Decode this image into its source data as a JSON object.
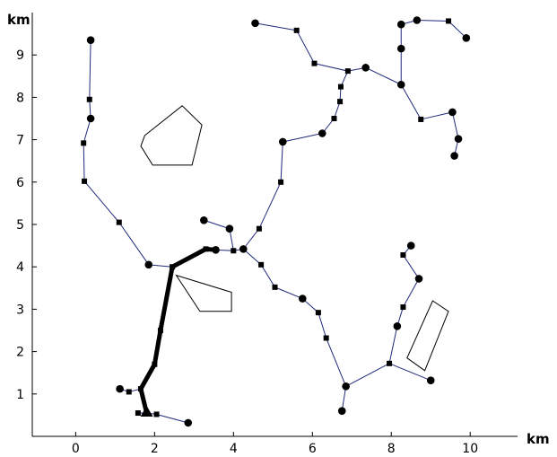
{
  "chart_data": {
    "type": "scatter",
    "xlabel": "km",
    "ylabel": "km",
    "xlim": [
      -1.1,
      11.2
    ],
    "ylim": [
      0,
      10
    ],
    "x_ticks": [
      "0",
      "2",
      "4",
      "6",
      "8",
      "10"
    ],
    "y_ticks": [
      "1",
      "2",
      "3",
      "4",
      "5",
      "6",
      "7",
      "8",
      "9"
    ],
    "grid": false,
    "line_color": "#1f2a7a",
    "main_trunk_color": "#000000",
    "nodes": [
      {
        "id": "n0",
        "x": 1.8,
        "y": 0.55,
        "marker": "triangle"
      },
      {
        "id": "n1",
        "x": 1.58,
        "y": 0.55,
        "marker": "square"
      },
      {
        "id": "n2",
        "x": 2.05,
        "y": 0.52,
        "marker": "square"
      },
      {
        "id": "n3",
        "x": 2.85,
        "y": 0.32,
        "marker": "circle"
      },
      {
        "id": "n4",
        "x": 1.65,
        "y": 1.12,
        "marker": "square"
      },
      {
        "id": "n5",
        "x": 1.35,
        "y": 1.05,
        "marker": "square"
      },
      {
        "id": "n6",
        "x": 1.12,
        "y": 1.12,
        "marker": "circle"
      },
      {
        "id": "n7",
        "x": 2.0,
        "y": 1.7,
        "marker": "square"
      },
      {
        "id": "n8",
        "x": 2.15,
        "y": 2.5,
        "marker": "square"
      },
      {
        "id": "n9",
        "x": 2.45,
        "y": 4.0,
        "marker": "square"
      },
      {
        "id": "n10",
        "x": 1.85,
        "y": 4.05,
        "marker": "circle"
      },
      {
        "id": "n11",
        "x": 1.1,
        "y": 5.05,
        "marker": "square"
      },
      {
        "id": "n12",
        "x": 0.22,
        "y": 6.02,
        "marker": "square"
      },
      {
        "id": "n13",
        "x": 0.2,
        "y": 6.92,
        "marker": "square"
      },
      {
        "id": "n14",
        "x": 0.38,
        "y": 7.5,
        "marker": "circle"
      },
      {
        "id": "n15",
        "x": 0.35,
        "y": 7.95,
        "marker": "square"
      },
      {
        "id": "n16",
        "x": 0.38,
        "y": 9.35,
        "marker": "circle"
      },
      {
        "id": "n17",
        "x": 3.3,
        "y": 4.42,
        "marker": "square"
      },
      {
        "id": "n18",
        "x": 3.55,
        "y": 4.4,
        "marker": "circle"
      },
      {
        "id": "n19",
        "x": 3.25,
        "y": 5.1,
        "marker": "circle"
      },
      {
        "id": "n20",
        "x": 3.9,
        "y": 4.9,
        "marker": "circle"
      },
      {
        "id": "n21",
        "x": 4.0,
        "y": 4.38,
        "marker": "square"
      },
      {
        "id": "n22",
        "x": 4.25,
        "y": 4.42,
        "marker": "circle"
      },
      {
        "id": "n23",
        "x": 4.65,
        "y": 4.9,
        "marker": "square"
      },
      {
        "id": "n24",
        "x": 5.2,
        "y": 6.0,
        "marker": "square"
      },
      {
        "id": "n25",
        "x": 5.25,
        "y": 6.95,
        "marker": "circle"
      },
      {
        "id": "n26",
        "x": 6.25,
        "y": 7.15,
        "marker": "circle"
      },
      {
        "id": "n27",
        "x": 6.55,
        "y": 7.5,
        "marker": "square"
      },
      {
        "id": "n28",
        "x": 6.7,
        "y": 7.9,
        "marker": "square"
      },
      {
        "id": "n29",
        "x": 6.72,
        "y": 8.25,
        "marker": "square"
      },
      {
        "id": "n30",
        "x": 6.9,
        "y": 8.62,
        "marker": "square"
      },
      {
        "id": "n31",
        "x": 6.05,
        "y": 8.8,
        "marker": "square"
      },
      {
        "id": "n32",
        "x": 5.6,
        "y": 9.58,
        "marker": "square"
      },
      {
        "id": "n33",
        "x": 4.55,
        "y": 9.75,
        "marker": "circle"
      },
      {
        "id": "n34",
        "x": 7.35,
        "y": 8.7,
        "marker": "circle"
      },
      {
        "id": "n35",
        "x": 8.25,
        "y": 8.3,
        "marker": "circle"
      },
      {
        "id": "n36",
        "x": 8.25,
        "y": 9.15,
        "marker": "circle"
      },
      {
        "id": "n37",
        "x": 8.25,
        "y": 9.72,
        "marker": "circle"
      },
      {
        "id": "n38",
        "x": 8.65,
        "y": 9.82,
        "marker": "circle"
      },
      {
        "id": "n39",
        "x": 9.45,
        "y": 9.8,
        "marker": "square"
      },
      {
        "id": "n40",
        "x": 9.9,
        "y": 9.4,
        "marker": "circle"
      },
      {
        "id": "n41",
        "x": 8.75,
        "y": 7.48,
        "marker": "square"
      },
      {
        "id": "n42",
        "x": 9.55,
        "y": 7.65,
        "marker": "circle"
      },
      {
        "id": "n43",
        "x": 9.7,
        "y": 7.02,
        "marker": "circle"
      },
      {
        "id": "n44",
        "x": 9.6,
        "y": 6.62,
        "marker": "circle"
      },
      {
        "id": "n45",
        "x": 4.7,
        "y": 4.05,
        "marker": "square"
      },
      {
        "id": "n46",
        "x": 5.05,
        "y": 3.52,
        "marker": "square"
      },
      {
        "id": "n47",
        "x": 5.75,
        "y": 3.25,
        "marker": "circle"
      },
      {
        "id": "n48",
        "x": 6.15,
        "y": 2.92,
        "marker": "square"
      },
      {
        "id": "n49",
        "x": 6.35,
        "y": 2.32,
        "marker": "square"
      },
      {
        "id": "n50",
        "x": 6.85,
        "y": 1.18,
        "marker": "circle"
      },
      {
        "id": "n51",
        "x": 6.75,
        "y": 0.6,
        "marker": "circle"
      },
      {
        "id": "n52",
        "x": 7.95,
        "y": 1.72,
        "marker": "square"
      },
      {
        "id": "n53",
        "x": 9.0,
        "y": 1.32,
        "marker": "circle"
      },
      {
        "id": "n54",
        "x": 8.15,
        "y": 2.6,
        "marker": "circle"
      },
      {
        "id": "n55",
        "x": 8.3,
        "y": 3.05,
        "marker": "square"
      },
      {
        "id": "n56",
        "x": 8.7,
        "y": 3.72,
        "marker": "circle"
      },
      {
        "id": "n57",
        "x": 8.3,
        "y": 4.28,
        "marker": "square"
      },
      {
        "id": "n58",
        "x": 8.5,
        "y": 4.5,
        "marker": "circle"
      }
    ],
    "edges": [
      [
        "n1",
        "n0"
      ],
      [
        "n0",
        "n2"
      ],
      [
        "n2",
        "n3"
      ],
      [
        "n0",
        "n4"
      ],
      [
        "n4",
        "n5"
      ],
      [
        "n5",
        "n6"
      ],
      [
        "n4",
        "n7"
      ],
      [
        "n7",
        "n8"
      ],
      [
        "n8",
        "n9"
      ],
      [
        "n9",
        "n10"
      ],
      [
        "n10",
        "n11"
      ],
      [
        "n11",
        "n12"
      ],
      [
        "n12",
        "n13"
      ],
      [
        "n13",
        "n14"
      ],
      [
        "n14",
        "n15"
      ],
      [
        "n15",
        "n16"
      ],
      [
        "n9",
        "n17"
      ],
      [
        "n17",
        "n18"
      ],
      [
        "n18",
        "n21"
      ],
      [
        "n19",
        "n20"
      ],
      [
        "n20",
        "n21"
      ],
      [
        "n21",
        "n22"
      ],
      [
        "n22",
        "n23"
      ],
      [
        "n23",
        "n24"
      ],
      [
        "n24",
        "n25"
      ],
      [
        "n25",
        "n26"
      ],
      [
        "n26",
        "n27"
      ],
      [
        "n27",
        "n28"
      ],
      [
        "n28",
        "n29"
      ],
      [
        "n29",
        "n30"
      ],
      [
        "n30",
        "n31"
      ],
      [
        "n31",
        "n32"
      ],
      [
        "n32",
        "n33"
      ],
      [
        "n30",
        "n34"
      ],
      [
        "n34",
        "n35"
      ],
      [
        "n35",
        "n36"
      ],
      [
        "n36",
        "n37"
      ],
      [
        "n37",
        "n38"
      ],
      [
        "n38",
        "n39"
      ],
      [
        "n39",
        "n40"
      ],
      [
        "n35",
        "n41"
      ],
      [
        "n41",
        "n42"
      ],
      [
        "n42",
        "n43"
      ],
      [
        "n43",
        "n44"
      ],
      [
        "n22",
        "n45"
      ],
      [
        "n45",
        "n46"
      ],
      [
        "n46",
        "n47"
      ],
      [
        "n47",
        "n48"
      ],
      [
        "n48",
        "n49"
      ],
      [
        "n49",
        "n50"
      ],
      [
        "n50",
        "n51"
      ],
      [
        "n50",
        "n52"
      ],
      [
        "n52",
        "n53"
      ],
      [
        "n52",
        "n54"
      ],
      [
        "n54",
        "n55"
      ],
      [
        "n55",
        "n56"
      ],
      [
        "n56",
        "n57"
      ],
      [
        "n57",
        "n58"
      ]
    ],
    "thick_edges": [
      [
        "n0",
        "n4"
      ],
      [
        "n4",
        "n7"
      ],
      [
        "n7",
        "n8"
      ],
      [
        "n8",
        "n9"
      ],
      [
        "n9",
        "n17"
      ],
      [
        "n17",
        "n18"
      ]
    ],
    "obstacles": [
      {
        "id": "pentagon",
        "points": [
          [
            1.75,
            7.1
          ],
          [
            2.7,
            7.8
          ],
          [
            3.2,
            7.35
          ],
          [
            2.95,
            6.4
          ],
          [
            1.95,
            6.4
          ],
          [
            1.65,
            6.85
          ]
        ]
      },
      {
        "id": "quadrilateral",
        "points": [
          [
            2.55,
            3.8
          ],
          [
            3.95,
            3.4
          ],
          [
            3.95,
            2.95
          ],
          [
            3.15,
            2.95
          ]
        ]
      },
      {
        "id": "rectangle",
        "points": [
          [
            9.05,
            3.2
          ],
          [
            9.45,
            2.95
          ],
          [
            8.85,
            1.55
          ],
          [
            8.4,
            1.85
          ]
        ]
      }
    ]
  }
}
